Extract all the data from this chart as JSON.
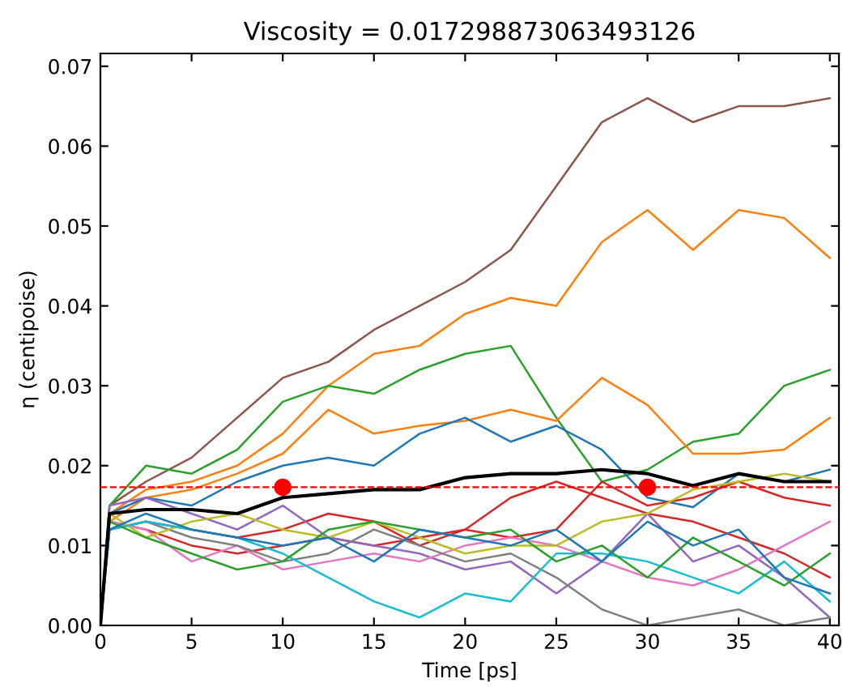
{
  "chart_data": {
    "type": "line",
    "title": "Viscosity = 0.017298873063493126",
    "xlabel": "Time [ps]",
    "ylabel": "η (centipoise)",
    "x": [
      0,
      0.5,
      2.5,
      5,
      7.5,
      10,
      12.5,
      15,
      17.5,
      20,
      22.5,
      25,
      27.5,
      30,
      32.5,
      35,
      37.5,
      40
    ],
    "series": [
      {
        "color": "#8c564b",
        "values": [
          0,
          0.015,
          0.018,
          0.021,
          0.026,
          0.031,
          0.033,
          0.037,
          0.04,
          0.043,
          0.047,
          0.055,
          0.063,
          0.066,
          0.063,
          0.065,
          0.065,
          0.066
        ]
      },
      {
        "color": "#ff7f0e",
        "values": [
          0,
          0.014,
          0.017,
          0.018,
          0.02,
          0.024,
          0.03,
          0.034,
          0.035,
          0.039,
          0.041,
          0.04,
          0.048,
          0.052,
          0.047,
          0.052,
          0.051,
          0.046
        ]
      },
      {
        "color": "#2ca02c",
        "values": [
          0,
          0.015,
          0.02,
          0.019,
          0.022,
          0.028,
          0.03,
          0.029,
          0.032,
          0.034,
          0.035,
          0.026,
          0.018,
          0.0195,
          0.023,
          0.024,
          0.03,
          0.032
        ]
      },
      {
        "color": "#ff7f0e",
        "values": [
          0,
          0.013,
          0.016,
          0.017,
          0.019,
          0.0215,
          0.027,
          0.024,
          0.025,
          0.0256,
          0.027,
          0.0256,
          0.031,
          0.0276,
          0.0215,
          0.0215,
          0.022,
          0.026
        ]
      },
      {
        "color": "#1f77b4",
        "values": [
          0,
          0.014,
          0.016,
          0.015,
          0.018,
          0.02,
          0.021,
          0.02,
          0.024,
          0.026,
          0.023,
          0.025,
          0.022,
          0.016,
          0.0148,
          0.019,
          0.018,
          0.0195
        ]
      },
      {
        "color": "#d62728",
        "values": [
          0,
          0.012,
          0.013,
          0.012,
          0.011,
          0.012,
          0.014,
          0.013,
          0.01,
          0.012,
          0.016,
          0.018,
          0.016,
          0.014,
          0.013,
          0.011,
          0.009,
          0.006
        ]
      },
      {
        "color": "#d62728",
        "values": [
          0,
          0.013,
          0.012,
          0.01,
          0.009,
          0.01,
          0.011,
          0.01,
          0.011,
          0.012,
          0.011,
          0.012,
          0.018,
          0.015,
          0.016,
          0.018,
          0.016,
          0.015
        ]
      },
      {
        "color": "#9467bd",
        "values": [
          0,
          0.015,
          0.016,
          0.014,
          0.012,
          0.015,
          0.011,
          0.01,
          0.009,
          0.007,
          0.008,
          0.004,
          0.008,
          0.014,
          0.008,
          0.01,
          0.006,
          0.001
        ]
      },
      {
        "color": "#e377c2",
        "values": [
          0,
          0.013,
          0.012,
          0.008,
          0.01,
          0.007,
          0.008,
          0.009,
          0.008,
          0.01,
          0.011,
          0.01,
          0.008,
          0.006,
          0.005,
          0.007,
          0.01,
          0.013
        ]
      },
      {
        "color": "#7f7f7f",
        "values": [
          0,
          0.012,
          0.013,
          0.011,
          0.01,
          0.008,
          0.009,
          0.012,
          0.01,
          0.008,
          0.009,
          0.006,
          0.002,
          0.0,
          0.001,
          0.002,
          0.0,
          0.001
        ]
      },
      {
        "color": "#bcbd22",
        "values": [
          0,
          0.014,
          0.011,
          0.013,
          0.014,
          0.012,
          0.011,
          0.013,
          0.011,
          0.009,
          0.01,
          0.01,
          0.013,
          0.014,
          0.017,
          0.018,
          0.019,
          0.018
        ]
      },
      {
        "color": "#17becf",
        "values": [
          0,
          0.012,
          0.013,
          0.012,
          0.011,
          0.009,
          0.006,
          0.003,
          0.001,
          0.004,
          0.003,
          0.009,
          0.009,
          0.008,
          0.006,
          0.004,
          0.008,
          0.003
        ]
      },
      {
        "color": "#2ca02c",
        "values": [
          0,
          0.013,
          0.011,
          0.009,
          0.007,
          0.008,
          0.012,
          0.013,
          0.012,
          0.011,
          0.012,
          0.008,
          0.01,
          0.006,
          0.011,
          0.008,
          0.005,
          0.009
        ]
      },
      {
        "color": "#1f77b4",
        "values": [
          0,
          0.012,
          0.014,
          0.012,
          0.011,
          0.01,
          0.011,
          0.008,
          0.012,
          0.011,
          0.01,
          0.012,
          0.008,
          0.013,
          0.01,
          0.012,
          0.006,
          0.004
        ]
      },
      {
        "color": "#000000",
        "values": [
          0,
          0.014,
          0.0145,
          0.0145,
          0.014,
          0.016,
          0.0165,
          0.017,
          0.017,
          0.0185,
          0.019,
          0.019,
          0.0195,
          0.019,
          0.0175,
          0.019,
          0.018,
          0.018
        ]
      },
      {
        "type": "scatter",
        "color": "#ff0000",
        "x": [
          10,
          30
        ],
        "values": [
          0.0173,
          0.0173
        ]
      }
    ],
    "ref_lines": [
      {
        "axis": "y",
        "value": 0.017298873063493127,
        "color": "#ff0000",
        "line_style": "dashed"
      }
    ],
    "xlim": [
      0,
      40.5
    ],
    "ylim": [
      0,
      0.0716
    ],
    "xticks": [
      0,
      5,
      10,
      15,
      20,
      25,
      30,
      35,
      40
    ],
    "yticks": [
      {
        "value": 0,
        "label": "0.00"
      },
      {
        "value": 0.01,
        "label": "0.01"
      },
      {
        "value": 0.02,
        "label": "0.02"
      },
      {
        "value": 0.03,
        "label": "0.03"
      },
      {
        "value": 0.04,
        "label": "0.04"
      },
      {
        "value": 0.05,
        "label": "0.05"
      },
      {
        "value": 0.06,
        "label": "0.06"
      },
      {
        "value": 0.07,
        "label": "0.07"
      }
    ],
    "grid": false,
    "legend": false
  }
}
